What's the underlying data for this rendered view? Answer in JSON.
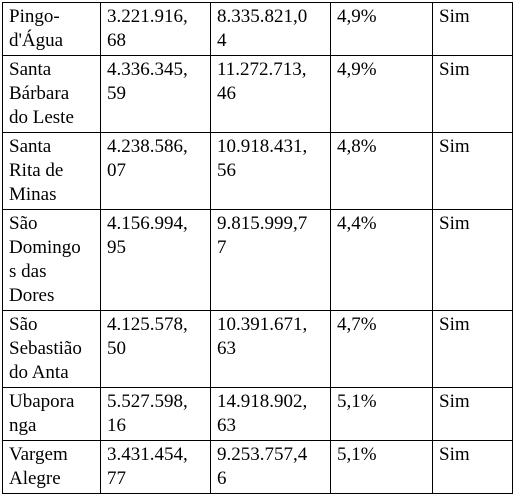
{
  "table": {
    "rows": [
      [
        [
          "Pingo-",
          "d'Água"
        ],
        [
          "3.221.916,",
          "68"
        ],
        [
          "8.335.821,0",
          "4"
        ],
        [
          "4,9%"
        ],
        [
          "Sim"
        ]
      ],
      [
        [
          "Santa",
          "Bárbara",
          "do Leste"
        ],
        [
          "4.336.345,",
          "59"
        ],
        [
          "11.272.713,",
          "46"
        ],
        [
          "4,9%"
        ],
        [
          "Sim"
        ]
      ],
      [
        [
          "Santa",
          "Rita de",
          "Minas"
        ],
        [
          "4.238.586,",
          "07"
        ],
        [
          "10.918.431,",
          "56"
        ],
        [
          "4,8%"
        ],
        [
          "Sim"
        ]
      ],
      [
        [
          "São",
          "Domingo",
          "s das",
          "Dores"
        ],
        [
          "4.156.994,",
          "95"
        ],
        [
          "9.815.999,7",
          "7"
        ],
        [
          "4,4%"
        ],
        [
          "Sim"
        ]
      ],
      [
        [
          "São",
          "Sebastião",
          "do Anta"
        ],
        [
          "4.125.578,",
          "50"
        ],
        [
          "10.391.671,",
          "63"
        ],
        [
          "4,7%"
        ],
        [
          "Sim"
        ]
      ],
      [
        [
          "Ubapora",
          "nga"
        ],
        [
          "5.527.598,",
          "16"
        ],
        [
          "14.918.902,",
          "63"
        ],
        [
          "5,1%"
        ],
        [
          "Sim"
        ]
      ],
      [
        [
          "Vargem",
          "Alegre"
        ],
        [
          "3.431.454,",
          "77"
        ],
        [
          "9.253.757,4",
          "6"
        ],
        [
          "5,1%"
        ],
        [
          "Sim"
        ]
      ]
    ]
  }
}
